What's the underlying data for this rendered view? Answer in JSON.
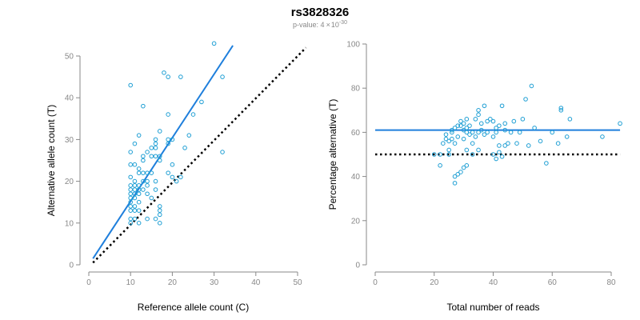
{
  "header": {
    "title": "rs3828326",
    "pvalue_label": "p-value: 4",
    "pvalue_times": "×",
    "pvalue_base": "10",
    "pvalue_exp": "-30"
  },
  "colors": {
    "accent": "#1f7fdc",
    "point": "#1f9fd4",
    "reference": "#000000",
    "axis": "#888888"
  },
  "chart_data": [
    {
      "type": "scatter",
      "name": "allele-counts",
      "xlabel": "Reference allele count (C)",
      "ylabel": "Alternative allele count (T)",
      "xlim": [
        0,
        50
      ],
      "ylim": [
        0,
        50
      ],
      "xticks": [
        0,
        10,
        20,
        30,
        40,
        50
      ],
      "yticks": [
        0,
        10,
        20,
        30,
        40,
        50
      ],
      "fit_line": {
        "x": [
          1,
          34.5
        ],
        "y": [
          1.5,
          52.5
        ],
        "color": "#1f7fdc"
      },
      "reference_line": {
        "x": [
          1,
          52
        ],
        "y": [
          0.5,
          52
        ],
        "style": "dotted",
        "color": "#000000"
      },
      "points": [
        [
          10,
          10
        ],
        [
          10,
          11
        ],
        [
          10,
          13
        ],
        [
          10,
          14
        ],
        [
          10,
          15
        ],
        [
          10,
          16
        ],
        [
          10,
          17
        ],
        [
          10,
          18
        ],
        [
          10,
          19
        ],
        [
          10,
          21
        ],
        [
          10,
          24
        ],
        [
          10,
          27
        ],
        [
          10,
          43
        ],
        [
          11,
          11
        ],
        [
          11,
          13
        ],
        [
          11,
          14
        ],
        [
          11,
          16
        ],
        [
          11,
          17
        ],
        [
          11,
          18
        ],
        [
          11,
          19
        ],
        [
          11,
          20
        ],
        [
          11,
          24
        ],
        [
          11,
          29
        ],
        [
          12,
          10
        ],
        [
          12,
          13
        ],
        [
          12,
          15
        ],
        [
          12,
          17
        ],
        [
          12,
          18
        ],
        [
          12,
          19
        ],
        [
          12,
          22
        ],
        [
          12,
          23
        ],
        [
          12,
          31
        ],
        [
          13,
          18
        ],
        [
          13,
          20
        ],
        [
          13,
          22
        ],
        [
          13,
          25
        ],
        [
          13,
          26
        ],
        [
          13,
          38
        ],
        [
          14,
          11
        ],
        [
          14,
          17
        ],
        [
          14,
          19
        ],
        [
          14,
          20
        ],
        [
          14,
          22
        ],
        [
          14,
          27
        ],
        [
          15,
          16
        ],
        [
          15,
          22
        ],
        [
          15,
          26
        ],
        [
          15,
          28
        ],
        [
          16,
          11
        ],
        [
          16,
          18
        ],
        [
          16,
          20
        ],
        [
          16,
          26
        ],
        [
          16,
          28
        ],
        [
          16,
          29
        ],
        [
          16,
          30
        ],
        [
          17,
          10
        ],
        [
          17,
          12
        ],
        [
          17,
          13
        ],
        [
          17,
          14
        ],
        [
          17,
          25
        ],
        [
          17,
          26
        ],
        [
          17,
          32
        ],
        [
          18,
          46
        ],
        [
          19,
          22
        ],
        [
          19,
          29
        ],
        [
          19,
          30
        ],
        [
          19,
          36
        ],
        [
          19,
          45
        ],
        [
          20,
          21
        ],
        [
          20,
          24
        ],
        [
          20,
          30
        ],
        [
          21,
          20
        ],
        [
          22,
          21
        ],
        [
          22,
          45
        ],
        [
          23,
          28
        ],
        [
          24,
          31
        ],
        [
          25,
          36
        ],
        [
          27,
          39
        ],
        [
          30,
          53
        ],
        [
          32,
          27
        ],
        [
          32,
          45
        ]
      ]
    },
    {
      "type": "scatter",
      "name": "percentage-alternative",
      "xlabel": "Total number of reads",
      "ylabel": "Percentage alternative (T)",
      "xlim": [
        0,
        80
      ],
      "ylim": [
        0,
        100
      ],
      "xticks": [
        0,
        20,
        40,
        60,
        80
      ],
      "yticks": [
        0,
        20,
        40,
        60,
        80,
        100
      ],
      "fit_line": {
        "x": [
          0,
          83
        ],
        "y": [
          61,
          61
        ],
        "color": "#1f7fdc"
      },
      "reference_line": {
        "x": [
          0,
          83
        ],
        "y": [
          50,
          50
        ],
        "style": "dotted",
        "color": "#000000"
      },
      "points": [
        [
          20,
          50
        ],
        [
          22,
          45
        ],
        [
          22,
          50
        ],
        [
          23,
          55
        ],
        [
          24,
          57
        ],
        [
          24,
          59
        ],
        [
          25,
          50
        ],
        [
          25,
          52
        ],
        [
          25,
          56
        ],
        [
          26,
          57
        ],
        [
          26,
          60
        ],
        [
          26,
          61
        ],
        [
          27,
          37
        ],
        [
          27,
          40
        ],
        [
          27,
          55
        ],
        [
          27,
          62
        ],
        [
          28,
          41
        ],
        [
          28,
          58
        ],
        [
          28,
          63
        ],
        [
          29,
          42
        ],
        [
          29,
          63
        ],
        [
          29,
          65
        ],
        [
          30,
          44
        ],
        [
          30,
          57
        ],
        [
          30,
          61
        ],
        [
          30,
          64
        ],
        [
          31,
          45
        ],
        [
          31,
          52
        ],
        [
          31,
          60
        ],
        [
          31,
          62
        ],
        [
          31,
          66
        ],
        [
          32,
          59
        ],
        [
          32,
          63
        ],
        [
          33,
          50
        ],
        [
          33,
          55
        ],
        [
          33,
          60
        ],
        [
          34,
          58
        ],
        [
          34,
          66
        ],
        [
          35,
          52
        ],
        [
          35,
          60
        ],
        [
          35,
          68
        ],
        [
          35,
          70
        ],
        [
          36,
          61
        ],
        [
          36,
          64
        ],
        [
          37,
          59
        ],
        [
          37,
          72
        ],
        [
          38,
          60
        ],
        [
          38,
          65
        ],
        [
          39,
          66
        ],
        [
          40,
          50
        ],
        [
          40,
          58
        ],
        [
          40,
          65
        ],
        [
          41,
          48
        ],
        [
          41,
          60
        ],
        [
          41,
          62
        ],
        [
          42,
          51
        ],
        [
          42,
          54
        ],
        [
          42,
          63
        ],
        [
          43,
          49
        ],
        [
          43,
          72
        ],
        [
          44,
          54
        ],
        [
          44,
          61
        ],
        [
          44,
          64
        ],
        [
          45,
          55
        ],
        [
          46,
          60
        ],
        [
          47,
          65
        ],
        [
          48,
          55
        ],
        [
          49,
          60
        ],
        [
          50,
          66
        ],
        [
          51,
          75
        ],
        [
          52,
          54
        ],
        [
          53,
          81
        ],
        [
          54,
          62
        ],
        [
          56,
          56
        ],
        [
          58,
          46
        ],
        [
          60,
          60
        ],
        [
          62,
          55
        ],
        [
          63,
          70
        ],
        [
          63,
          71
        ],
        [
          65,
          58
        ],
        [
          66,
          66
        ],
        [
          77,
          58
        ],
        [
          83,
          64
        ]
      ]
    }
  ]
}
